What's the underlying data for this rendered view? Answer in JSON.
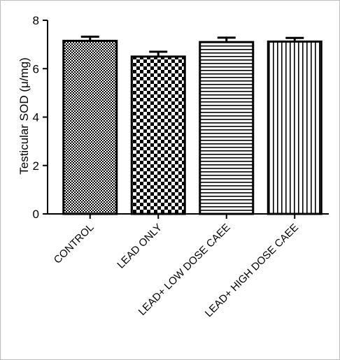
{
  "chart_data": {
    "type": "bar",
    "title": "",
    "xlabel": "",
    "ylabel": "Testicular SOD (μ/mg)",
    "ylim": [
      0,
      8
    ],
    "yticks": [
      0,
      2,
      4,
      6,
      8
    ],
    "categories": [
      "CONTROL",
      "LEAD ONLY",
      "LEAD+ LOW DOSE CAEE",
      "LEAD+ HIGH DOSE CAEE"
    ],
    "values": [
      7.15,
      6.5,
      7.1,
      7.12
    ],
    "errors": [
      0.17,
      0.2,
      0.18,
      0.15
    ],
    "patterns": [
      "fine-checker",
      "coarse-checker",
      "horizontal-lines",
      "vertical-lines"
    ],
    "grid": false,
    "legend": "none"
  }
}
